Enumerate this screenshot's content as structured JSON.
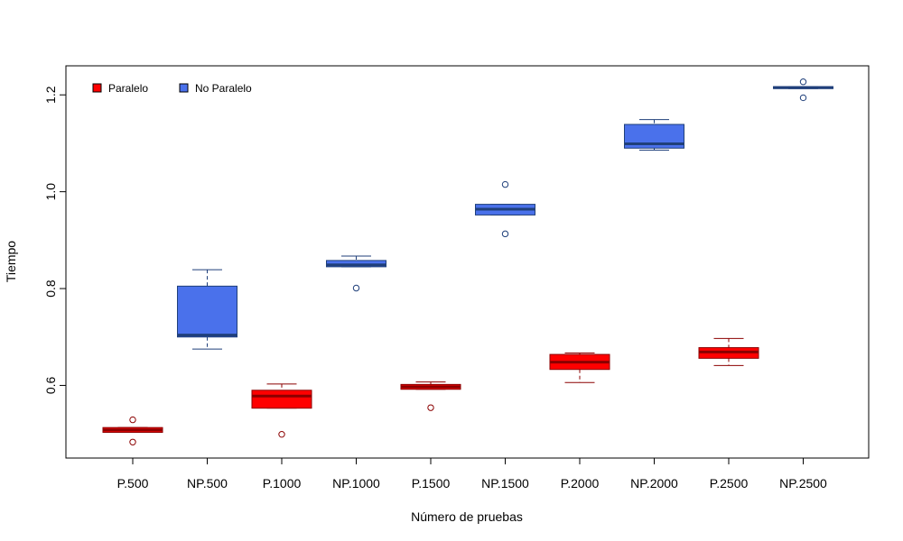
{
  "chart_data": {
    "type": "boxplot",
    "title": "",
    "xlabel": "Número de pruebas",
    "ylabel": "Tiempo",
    "ylim": [
      0.45,
      1.26
    ],
    "yticks": [
      0.6,
      0.8,
      1.0,
      1.2
    ],
    "ytick_labels": [
      "0.6",
      "0.8",
      "1.0",
      "1.2"
    ],
    "legend": {
      "position": "top-left",
      "entries": [
        {
          "label": "Paralelo",
          "color": "#ff0000"
        },
        {
          "label": "No Paralelo",
          "color": "#4a71eb"
        }
      ]
    },
    "colors": {
      "Paralelo": {
        "fill": "#ff0000",
        "border": "#8b0000"
      },
      "No Paralelo": {
        "fill": "#4a71eb",
        "border": "#1f3f7a"
      }
    },
    "boxes": [
      {
        "label": "P.500",
        "group": "Paralelo",
        "whisker_low": 0.503,
        "q1": 0.503,
        "median": 0.508,
        "q3": 0.513,
        "whisker_high": 0.513,
        "outliers": [
          0.483,
          0.529
        ]
      },
      {
        "label": "NP.500",
        "group": "No Paralelo",
        "whisker_low": 0.675,
        "q1": 0.7,
        "median": 0.704,
        "q3": 0.805,
        "whisker_high": 0.839,
        "outliers": []
      },
      {
        "label": "P.1000",
        "group": "Paralelo",
        "whisker_low": 0.553,
        "q1": 0.553,
        "median": 0.578,
        "q3": 0.59,
        "whisker_high": 0.603,
        "outliers": [
          0.499
        ]
      },
      {
        "label": "NP.1000",
        "group": "No Paralelo",
        "whisker_low": 0.845,
        "q1": 0.845,
        "median": 0.849,
        "q3": 0.858,
        "whisker_high": 0.867,
        "outliers": [
          0.801
        ]
      },
      {
        "label": "P.1500",
        "group": "Paralelo",
        "whisker_low": 0.592,
        "q1": 0.592,
        "median": 0.597,
        "q3": 0.602,
        "whisker_high": 0.607,
        "outliers": [
          0.554
        ]
      },
      {
        "label": "NP.1500",
        "group": "No Paralelo",
        "whisker_low": 0.952,
        "q1": 0.952,
        "median": 0.964,
        "q3": 0.974,
        "whisker_high": 0.974,
        "outliers": [
          0.913,
          1.015
        ]
      },
      {
        "label": "P.2000",
        "group": "Paralelo",
        "whisker_low": 0.606,
        "q1": 0.633,
        "median": 0.648,
        "q3": 0.664,
        "whisker_high": 0.667,
        "outliers": []
      },
      {
        "label": "NP.2000",
        "group": "No Paralelo",
        "whisker_low": 1.086,
        "q1": 1.09,
        "median": 1.099,
        "q3": 1.139,
        "whisker_high": 1.149,
        "outliers": []
      },
      {
        "label": "P.2500",
        "group": "Paralelo",
        "whisker_low": 0.641,
        "q1": 0.656,
        "median": 0.669,
        "q3": 0.678,
        "whisker_high": 0.697,
        "outliers": []
      },
      {
        "label": "NP.2500",
        "group": "No Paralelo",
        "whisker_low": 1.213,
        "q1": 1.213,
        "median": 1.215,
        "q3": 1.217,
        "whisker_high": 1.217,
        "outliers": [
          1.194,
          1.227
        ]
      }
    ]
  }
}
